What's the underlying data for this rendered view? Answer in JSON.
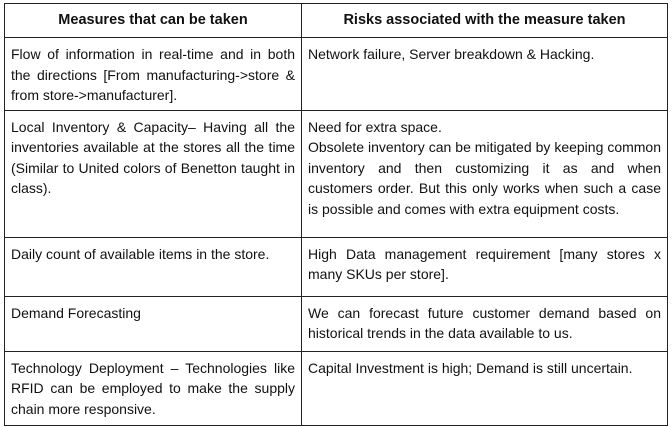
{
  "table": {
    "headers": [
      "Measures that can be taken",
      "Risks associated with the measure taken"
    ],
    "rows": [
      {
        "measure": "Flow of information in real-time and in both the directions [From manufacturing->store & from store->manufacturer].",
        "risk": [
          "Network failure, Server breakdown & Hacking."
        ]
      },
      {
        "measure": "Local Inventory & Capacity– Having all the inventories available at the stores all the time (Similar to United colors of Benetton taught in class).",
        "risk": [
          "Need for extra space.",
          "Obsolete inventory can be mitigated by keeping common inventory and then customizing it as and when customers order. But this only works when such a case is possible and comes with extra equipment costs."
        ]
      },
      {
        "measure": "Daily count of available items in the store.",
        "risk": [
          "High Data management requirement [many stores x many SKUs per store]."
        ]
      },
      {
        "measure": "Demand Forecasting",
        "risk": [
          "We can forecast future customer demand based on historical trends in the data available to us."
        ]
      },
      {
        "measure": "Technology Deployment – Technologies like RFID can be employed to make the supply chain more responsive.",
        "risk": [
          "Capital Investment is high; Demand is still uncertain."
        ]
      }
    ]
  }
}
